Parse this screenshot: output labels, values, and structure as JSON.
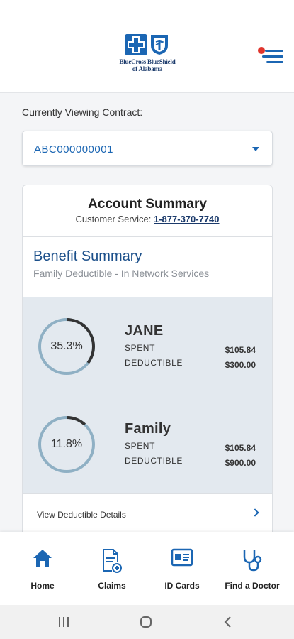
{
  "header": {
    "logo_text_line1": "BlueCross BlueShield",
    "logo_text_line2": "of Alabama",
    "brand_color": "#1b66b3",
    "notification_dot_color": "#e0352d",
    "menu_icon": "hamburger-menu-icon"
  },
  "contract": {
    "label": "Currently Viewing Contract:",
    "value": "ABC000000001"
  },
  "account_summary": {
    "title": "Account Summary",
    "customer_service_label": "Customer Service:",
    "customer_service_phone": "1-877-370-7740"
  },
  "benefit_summary": {
    "title": "Benefit Summary",
    "subtitle": "Family Deductible - In Network Services"
  },
  "deductibles": [
    {
      "name": "JANE",
      "percent_label": "35.3%",
      "percent": 0.353,
      "spent_label": "SPENT",
      "deductible_label": "DEDUCTIBLE",
      "spent": "$105.84",
      "deductible": "$300.00"
    },
    {
      "name": "Family",
      "percent_label": "11.8%",
      "percent": 0.118,
      "spent_label": "SPENT",
      "deductible_label": "DEDUCTIBLE",
      "spent": "$105.84",
      "deductible": "$900.00"
    }
  ],
  "details_link": "View Deductible Details",
  "tabs": [
    {
      "label": "Home",
      "icon": "home-icon"
    },
    {
      "label": "Claims",
      "icon": "claims-icon"
    },
    {
      "label": "ID Cards",
      "icon": "id-card-icon"
    },
    {
      "label": "Find a Doctor",
      "icon": "stethoscope-icon"
    }
  ],
  "ring_colors": {
    "track": "#8fb0c4",
    "progress": "#333333"
  }
}
